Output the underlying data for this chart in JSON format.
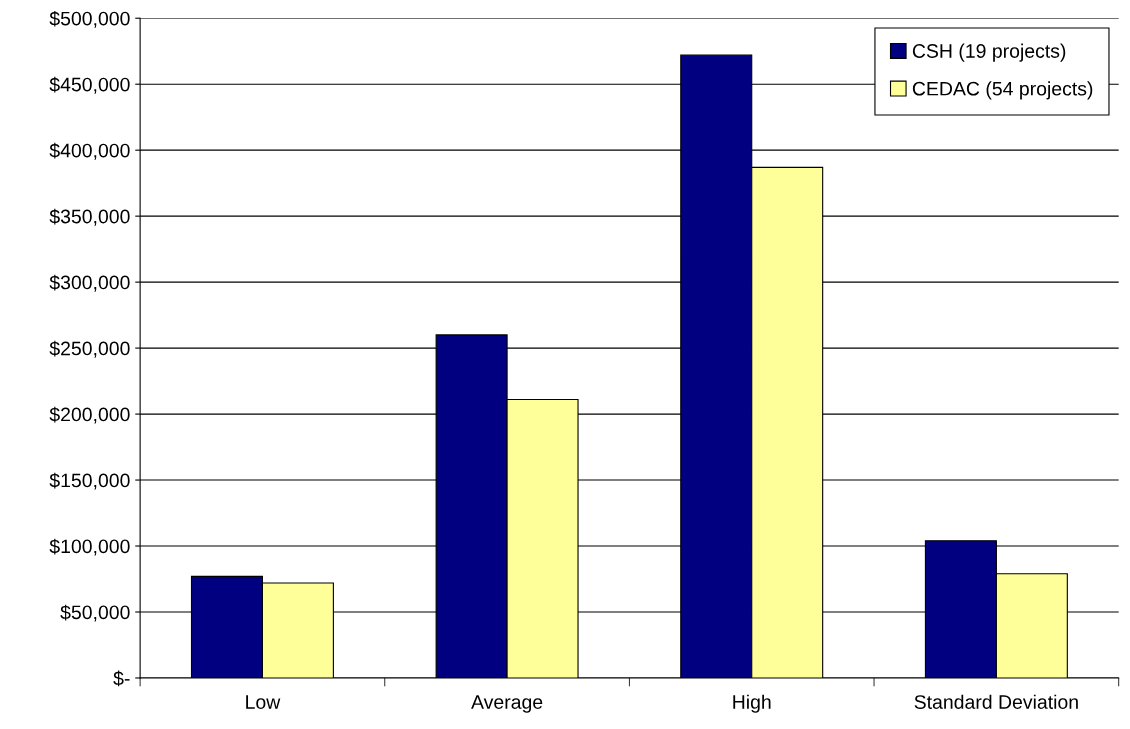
{
  "chart_data": {
    "type": "bar",
    "categories": [
      "Low",
      "Average",
      "High",
      "Standard Deviation"
    ],
    "series": [
      {
        "name": "CSH (19 projects)",
        "color": "#000080",
        "values": [
          77000,
          260000,
          472000,
          104000
        ]
      },
      {
        "name": "CEDAC (54 projects)",
        "color": "#ffff99",
        "values": [
          72000,
          211000,
          387000,
          79000
        ]
      }
    ],
    "ylim": [
      0,
      500000
    ],
    "yticks": [
      {
        "value": 0,
        "label": "$-"
      },
      {
        "value": 50000,
        "label": "$50,000"
      },
      {
        "value": 100000,
        "label": "$100,000"
      },
      {
        "value": 150000,
        "label": "$150,000"
      },
      {
        "value": 200000,
        "label": "$200,000"
      },
      {
        "value": 250000,
        "label": "$250,000"
      },
      {
        "value": 300000,
        "label": "$300,000"
      },
      {
        "value": 350000,
        "label": "$350,000"
      },
      {
        "value": 400000,
        "label": "$400,000"
      },
      {
        "value": 450000,
        "label": "$450,000"
      },
      {
        "value": 500000,
        "label": "$500,000"
      }
    ],
    "grid": "y",
    "legend": "top right"
  }
}
